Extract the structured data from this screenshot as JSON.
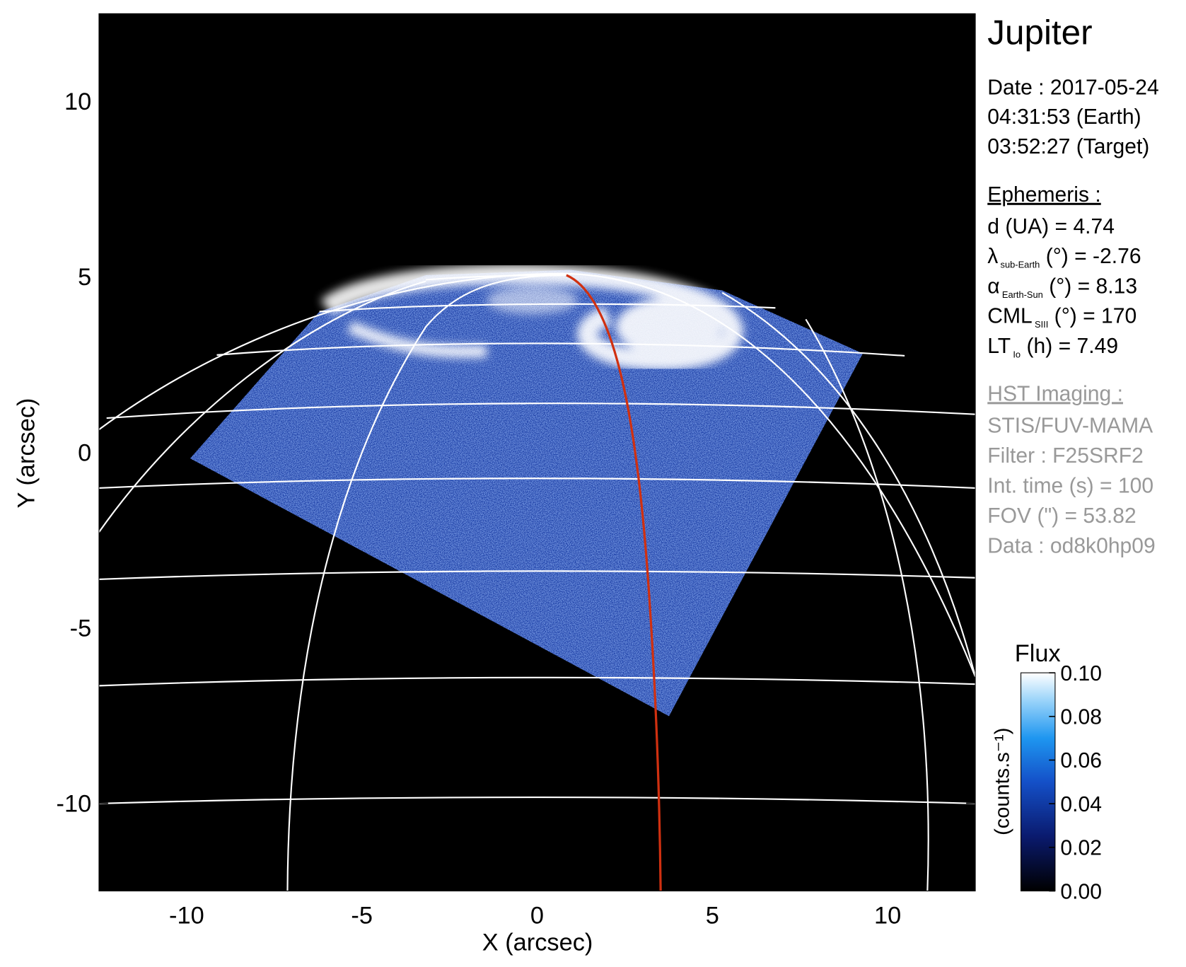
{
  "chart_data": {
    "type": "image",
    "xlabel": "X (arcsec)",
    "ylabel": "Y (arcsec)",
    "xlim": [
      -12.5,
      12.5
    ],
    "ylim": [
      -12.5,
      12.5
    ],
    "xticks": [
      -10,
      -5,
      0,
      5,
      10
    ],
    "yticks": [
      -10,
      -5,
      0,
      5,
      10
    ],
    "colorbar": {
      "title": "Flux",
      "label": "(counts.s⁻¹)",
      "lim": [
        0,
        0.1
      ],
      "ticks": [
        {
          "value": 0,
          "label": "0.00"
        },
        {
          "value": 0.02,
          "label": "0.02"
        },
        {
          "value": 0.04,
          "label": "0.04"
        },
        {
          "value": 0.06,
          "label": "0.06"
        },
        {
          "value": 0.08,
          "label": "0.08"
        },
        {
          "value": 0.1,
          "label": "0.10"
        }
      ]
    }
  },
  "info": {
    "title": "Jupiter",
    "date": [
      "Date : 2017-05-24",
      "04:31:53 (Earth)",
      "03:52:27 (Target)"
    ],
    "ephemeris": {
      "heading": "Ephemeris :",
      "lines": [
        {
          "main": "d (UA)    = 4.74"
        },
        {
          "main": "λ",
          "sub": "sub-Earth",
          "rest": " (°) = -2.76"
        },
        {
          "main": "α",
          "sub": "Earth-Sun",
          "rest": " (°) = 8.13"
        },
        {
          "main": "CML",
          "sub": "SIII",
          "rest": " (°) = 170"
        },
        {
          "main": "LT",
          "sub": "Io",
          "rest": " (h) = 7.49"
        }
      ]
    },
    "imaging": {
      "heading": "HST Imaging :",
      "lines": [
        "STIS/FUV-MAMA",
        "Filter : F25SRF2",
        "Int. time (s) = 100",
        "FOV (\") = 53.82",
        "Data : od8k0hp09"
      ]
    }
  }
}
